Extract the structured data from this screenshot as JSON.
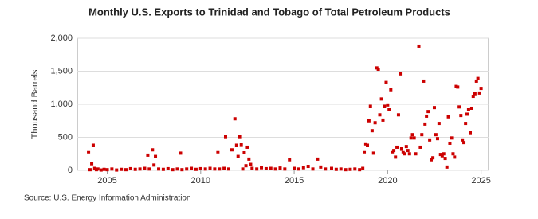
{
  "chart_data": {
    "type": "scatter",
    "title": "Monthly U.S. Exports to Trinidad and Tobago of Total Petroleum Products",
    "y_label": "Thousand Barrels",
    "source": "Source: U.S. Energy Information Administration",
    "color": "#cc0000",
    "grid": true,
    "xlim": [
      2003.4,
      2025.4
    ],
    "xticks": [
      2005,
      2010,
      2015,
      2020,
      2025
    ],
    "ylim": [
      0,
      2000
    ],
    "yticks": [
      0,
      500,
      {
        "value": 1000,
        "label": "1,000"
      },
      {
        "value": 1500,
        "label": "1,500"
      },
      {
        "value": 2000,
        "label": "2,000"
      }
    ],
    "x": [
      2004.0,
      2004.08,
      2004.17,
      2004.25,
      2004.33,
      2004.42,
      2004.5,
      2004.67,
      2004.83,
      2005.0,
      2005.25,
      2005.5,
      2005.75,
      2006.0,
      2006.25,
      2006.5,
      2006.75,
      2007.0,
      2007.17,
      2007.25,
      2007.42,
      2007.5,
      2007.58,
      2007.75,
      2008.0,
      2008.25,
      2008.5,
      2008.75,
      2008.92,
      2009.0,
      2009.25,
      2009.5,
      2009.75,
      2010.0,
      2010.25,
      2010.5,
      2010.75,
      2010.92,
      2011.0,
      2011.25,
      2011.33,
      2011.5,
      2011.67,
      2011.83,
      2011.92,
      2012.0,
      2012.08,
      2012.17,
      2012.25,
      2012.33,
      2012.42,
      2012.5,
      2012.58,
      2012.67,
      2012.75,
      2013.0,
      2013.25,
      2013.5,
      2013.75,
      2014.0,
      2014.25,
      2014.5,
      2014.75,
      2015.0,
      2015.25,
      2015.5,
      2015.75,
      2016.0,
      2016.25,
      2016.42,
      2016.67,
      2017.0,
      2017.25,
      2017.5,
      2017.75,
      2018.0,
      2018.25,
      2018.5,
      2018.67,
      2018.75,
      2018.83,
      2018.92,
      2019.0,
      2019.08,
      2019.17,
      2019.25,
      2019.33,
      2019.42,
      2019.5,
      2019.58,
      2019.67,
      2019.75,
      2019.83,
      2019.92,
      2020.0,
      2020.08,
      2020.17,
      2020.25,
      2020.33,
      2020.42,
      2020.5,
      2020.58,
      2020.67,
      2020.75,
      2020.83,
      2020.92,
      2021.0,
      2021.08,
      2021.17,
      2021.25,
      2021.33,
      2021.42,
      2021.5,
      2021.67,
      2021.75,
      2021.83,
      2021.92,
      2022.0,
      2022.08,
      2022.17,
      2022.25,
      2022.33,
      2022.42,
      2022.5,
      2022.58,
      2022.67,
      2022.75,
      2022.83,
      2022.92,
      2023.0,
      2023.08,
      2023.17,
      2023.25,
      2023.33,
      2023.42,
      2023.5,
      2023.58,
      2023.67,
      2023.75,
      2023.83,
      2023.92,
      2024.0,
      2024.08,
      2024.17,
      2024.25,
      2024.33,
      2024.42,
      2024.5,
      2024.58,
      2024.67,
      2024.75,
      2024.83,
      2024.92,
      2025.0
    ],
    "values": [
      280,
      10,
      100,
      380,
      30,
      10,
      20,
      5,
      15,
      10,
      20,
      5,
      15,
      10,
      25,
      15,
      20,
      30,
      230,
      20,
      310,
      80,
      210,
      20,
      15,
      25,
      10,
      20,
      260,
      10,
      20,
      30,
      15,
      25,
      20,
      30,
      20,
      280,
      20,
      30,
      510,
      20,
      310,
      780,
      380,
      210,
      510,
      390,
      20,
      270,
      70,
      350,
      170,
      90,
      30,
      20,
      40,
      25,
      30,
      20,
      35,
      20,
      160,
      30,
      20,
      40,
      60,
      20,
      170,
      50,
      20,
      30,
      15,
      20,
      10,
      15,
      20,
      10,
      30,
      280,
      400,
      380,
      750,
      970,
      600,
      260,
      720,
      1550,
      1530,
      840,
      1080,
      760,
      970,
      1330,
      990,
      920,
      1220,
      280,
      300,
      200,
      350,
      840,
      1460,
      330,
      280,
      250,
      360,
      300,
      250,
      490,
      540,
      490,
      250,
      1880,
      350,
      540,
      1350,
      700,
      820,
      890,
      460,
      160,
      190,
      950,
      540,
      480,
      710,
      240,
      220,
      250,
      180,
      50,
      810,
      410,
      490,
      250,
      200,
      1270,
      1260,
      960,
      830,
      460,
      420,
      710,
      850,
      920,
      570,
      940,
      1120,
      1160,
      1350,
      1390,
      1170,
      1240
    ]
  }
}
